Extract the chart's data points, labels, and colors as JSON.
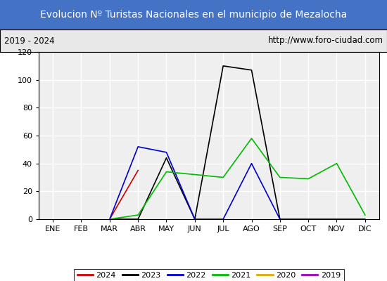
{
  "title": "Evolucion Nº Turistas Nacionales en el municipio de Mezalocha",
  "subtitle_left": "2019 - 2024",
  "subtitle_right": "http://www.foro-ciudad.com",
  "months": [
    "ENE",
    "FEB",
    "MAR",
    "ABR",
    "MAY",
    "JUN",
    "JUL",
    "AGO",
    "SEP",
    "OCT",
    "NOV",
    "DIC"
  ],
  "series": {
    "2024": {
      "color": "#cc0000",
      "values": [
        null,
        null,
        0,
        35,
        null,
        null,
        null,
        null,
        null,
        null,
        null,
        null
      ]
    },
    "2023": {
      "color": "#000000",
      "values": [
        null,
        null,
        0,
        0,
        44,
        0,
        110,
        107,
        0,
        0,
        0,
        0
      ]
    },
    "2022": {
      "color": "#0000cc",
      "values": [
        null,
        null,
        0,
        52,
        48,
        0,
        0,
        40,
        0,
        null,
        null,
        null
      ]
    },
    "2021": {
      "color": "#00bb00",
      "values": [
        null,
        null,
        0,
        3,
        34,
        32,
        30,
        58,
        30,
        29,
        40,
        3
      ]
    },
    "2020": {
      "color": "#ddaa00",
      "values": [
        null,
        null,
        null,
        null,
        null,
        null,
        null,
        null,
        null,
        null,
        null,
        null
      ]
    },
    "2019": {
      "color": "#9900bb",
      "values": [
        null,
        null,
        null,
        null,
        null,
        null,
        null,
        null,
        null,
        null,
        null,
        null
      ]
    }
  },
  "ylim": [
    0,
    120
  ],
  "yticks": [
    0,
    20,
    40,
    60,
    80,
    100,
    120
  ],
  "title_bg_color": "#4472c4",
  "title_color": "#ffffff",
  "plot_bg_color": "#efefef",
  "grid_color": "#ffffff",
  "border_color": "#000000",
  "subtitle_bg_color": "#e8e8e8",
  "title_fontsize": 10,
  "subtitle_fontsize": 8.5,
  "legend_fontsize": 8,
  "tick_fontsize": 8
}
